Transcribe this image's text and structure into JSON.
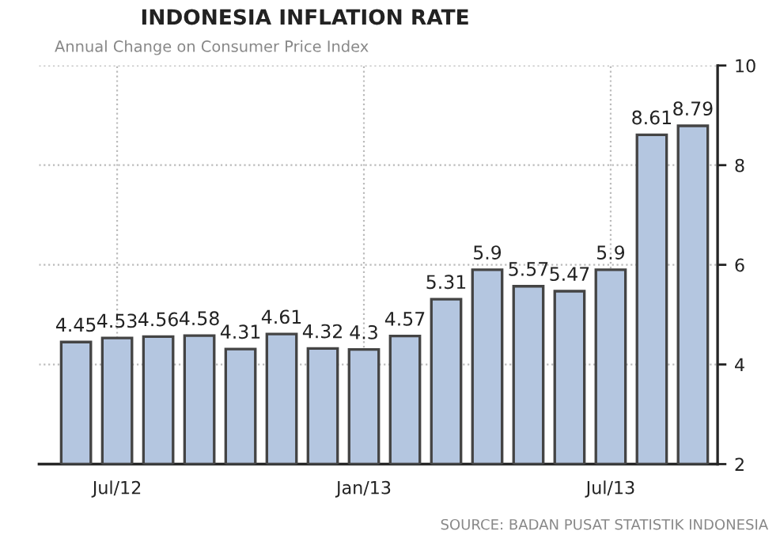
{
  "chart_data": {
    "type": "bar",
    "title": "INDONESIA INFLATION RATE",
    "subtitle": "Annual Change on Consumer Price Index",
    "categories": [
      null,
      "Jul/12",
      null,
      null,
      null,
      null,
      null,
      "Jan/13",
      null,
      null,
      null,
      null,
      null,
      "Jul/13",
      null,
      null
    ],
    "values": [
      4.45,
      4.53,
      4.56,
      4.58,
      4.31,
      4.61,
      4.32,
      4.3,
      4.57,
      5.31,
      5.9,
      5.57,
      5.47,
      5.9,
      8.61,
      8.79
    ],
    "color": "#b4c6e0",
    "data_labels": true,
    "ylim": [
      2,
      10
    ],
    "yticks": [
      2,
      4,
      6,
      8,
      10
    ],
    "grid": true,
    "legend": false,
    "annotations": [
      "SOURCE: BADAN PUSAT STATISTIK INDONESIA"
    ]
  }
}
